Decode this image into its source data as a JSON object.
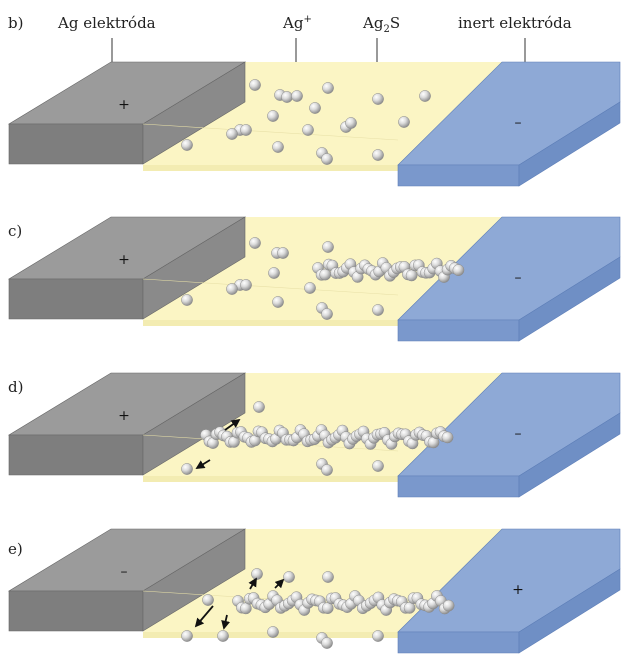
{
  "labels": {
    "ag_electrode": "Ag elektróda",
    "ag_ion_base": "Ag",
    "ag_ion_sup": "+",
    "ag2s_base": "Ag",
    "ag2s_sub": "2",
    "ag2s_tail": "S",
    "inert_electrode": "inert elektróda"
  },
  "panels": [
    {
      "letter": "b)",
      "left_sign": "+",
      "right_sign": "–",
      "stage": "ions"
    },
    {
      "letter": "c)",
      "left_sign": "+",
      "right_sign": "–",
      "stage": "growing"
    },
    {
      "letter": "d)",
      "left_sign": "+",
      "right_sign": "–",
      "stage": "bridged"
    },
    {
      "letter": "e)",
      "left_sign": "–",
      "right_sign": "+",
      "stage": "dissolving"
    }
  ],
  "colors": {
    "ag_electrode_top": "#9b9b9b",
    "ag_electrode_front": "#7e7e7e",
    "electrolyte": "#fbf5c4",
    "inert_top": "#8ea9d6",
    "inert_front": "#7a98cc",
    "particle": "#d9d9d9"
  }
}
